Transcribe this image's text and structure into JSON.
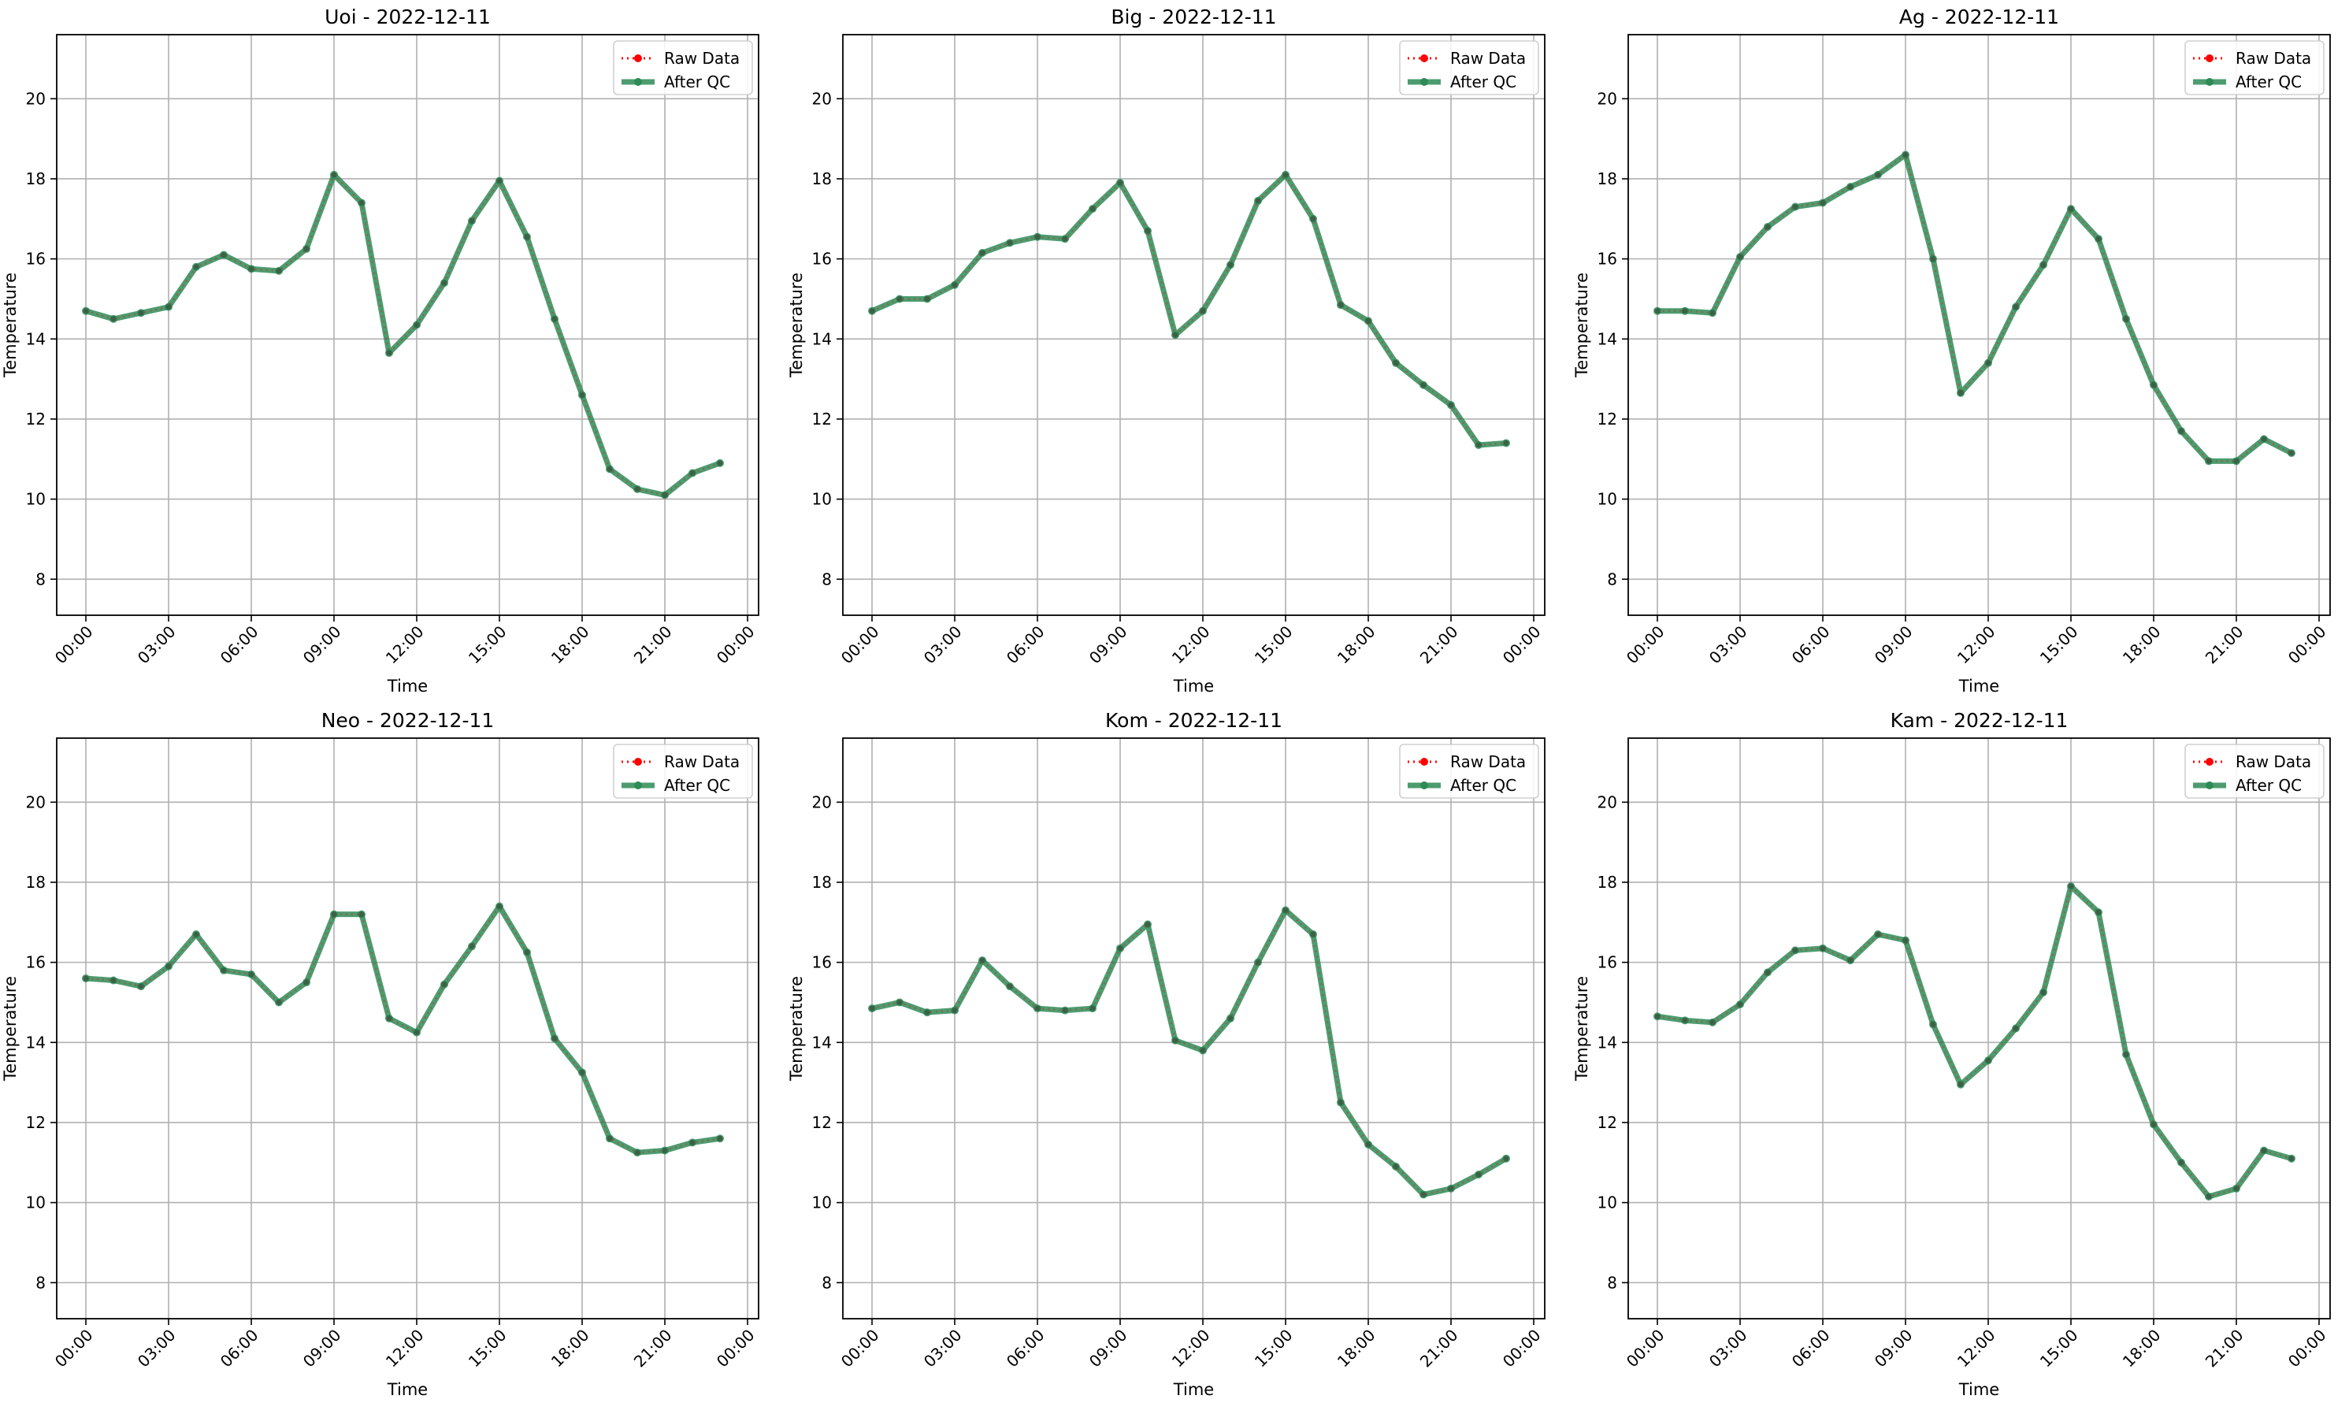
{
  "chart_data": [
    {
      "type": "line",
      "title": "Uoi - 2022-12-11",
      "xlabel": "Time",
      "ylabel": "Temperature",
      "x_ticks": [
        "00:00",
        "03:00",
        "06:00",
        "09:00",
        "12:00",
        "15:00",
        "18:00",
        "21:00",
        "00:00"
      ],
      "x_hours": [
        0,
        1,
        2,
        3,
        4,
        5,
        6,
        7,
        8,
        9,
        10,
        11,
        12,
        13,
        14,
        15,
        16,
        17,
        18,
        19,
        20,
        21,
        22,
        23
      ],
      "ylim": [
        7.1,
        21.6
      ],
      "y_ticks": [
        8,
        10,
        12,
        14,
        16,
        18,
        20
      ],
      "grid": true,
      "legend": "top-right",
      "series": [
        {
          "name": "Raw Data",
          "color": "#ff0000",
          "style": "dotted",
          "values": [
            14.7,
            14.5,
            14.65,
            14.8,
            15.8,
            16.1,
            15.75,
            15.7,
            16.25,
            18.1,
            17.4,
            13.65,
            14.35,
            15.4,
            16.95,
            17.95,
            16.55,
            14.5,
            12.6,
            10.75,
            10.25,
            10.1,
            10.65,
            10.9
          ]
        },
        {
          "name": "After QC",
          "color": "#2e8b57",
          "style": "solid",
          "values": [
            14.7,
            14.5,
            14.65,
            14.8,
            15.8,
            16.1,
            15.75,
            15.7,
            16.25,
            18.1,
            17.4,
            13.65,
            14.35,
            15.4,
            16.95,
            17.95,
            16.55,
            14.5,
            12.6,
            10.75,
            10.25,
            10.1,
            10.65,
            10.9
          ]
        }
      ]
    },
    {
      "type": "line",
      "title": "Big - 2022-12-11",
      "xlabel": "Time",
      "ylabel": "Temperature",
      "x_ticks": [
        "00:00",
        "03:00",
        "06:00",
        "09:00",
        "12:00",
        "15:00",
        "18:00",
        "21:00",
        "00:00"
      ],
      "x_hours": [
        0,
        1,
        2,
        3,
        4,
        5,
        6,
        7,
        8,
        9,
        10,
        11,
        12,
        13,
        14,
        15,
        16,
        17,
        18,
        19,
        20,
        21,
        22,
        23
      ],
      "ylim": [
        7.1,
        21.6
      ],
      "y_ticks": [
        8,
        10,
        12,
        14,
        16,
        18,
        20
      ],
      "grid": true,
      "legend": "top-right",
      "series": [
        {
          "name": "Raw Data",
          "color": "#ff0000",
          "style": "dotted",
          "values": [
            14.7,
            15.0,
            15.0,
            15.35,
            16.15,
            16.4,
            16.55,
            16.5,
            17.25,
            17.9,
            16.7,
            14.1,
            14.7,
            15.85,
            17.45,
            18.1,
            17.0,
            14.85,
            14.45,
            13.4,
            12.85,
            12.35,
            11.35,
            11.4
          ]
        },
        {
          "name": "After QC",
          "color": "#2e8b57",
          "style": "solid",
          "values": [
            14.7,
            15.0,
            15.0,
            15.35,
            16.15,
            16.4,
            16.55,
            16.5,
            17.25,
            17.9,
            16.7,
            14.1,
            14.7,
            15.85,
            17.45,
            18.1,
            17.0,
            14.85,
            14.45,
            13.4,
            12.85,
            12.35,
            11.35,
            11.4
          ]
        }
      ]
    },
    {
      "type": "line",
      "title": "Ag - 2022-12-11",
      "xlabel": "Time",
      "ylabel": "Temperature",
      "x_ticks": [
        "00:00",
        "03:00",
        "06:00",
        "09:00",
        "12:00",
        "15:00",
        "18:00",
        "21:00",
        "00:00"
      ],
      "x_hours": [
        0,
        1,
        2,
        3,
        4,
        5,
        6,
        7,
        8,
        9,
        10,
        11,
        12,
        13,
        14,
        15,
        16,
        17,
        18,
        19,
        20,
        21,
        22,
        23
      ],
      "ylim": [
        7.1,
        21.6
      ],
      "y_ticks": [
        8,
        10,
        12,
        14,
        16,
        18,
        20
      ],
      "grid": true,
      "legend": "top-right",
      "series": [
        {
          "name": "Raw Data",
          "color": "#ff0000",
          "style": "dotted",
          "values": [
            14.7,
            14.7,
            14.65,
            16.05,
            16.8,
            17.3,
            17.4,
            17.8,
            18.1,
            18.6,
            16.0,
            12.65,
            13.4,
            14.8,
            15.85,
            17.25,
            16.5,
            14.5,
            12.85,
            11.7,
            10.95,
            10.95,
            11.5,
            11.15
          ]
        },
        {
          "name": "After QC",
          "color": "#2e8b57",
          "style": "solid",
          "values": [
            14.7,
            14.7,
            14.65,
            16.05,
            16.8,
            17.3,
            17.4,
            17.8,
            18.1,
            18.6,
            16.0,
            12.65,
            13.4,
            14.8,
            15.85,
            17.25,
            16.5,
            14.5,
            12.85,
            11.7,
            10.95,
            10.95,
            11.5,
            11.15
          ]
        }
      ]
    },
    {
      "type": "line",
      "title": "Neo - 2022-12-11",
      "xlabel": "Time",
      "ylabel": "Temperature",
      "x_ticks": [
        "00:00",
        "03:00",
        "06:00",
        "09:00",
        "12:00",
        "15:00",
        "18:00",
        "21:00",
        "00:00"
      ],
      "x_hours": [
        0,
        1,
        2,
        3,
        4,
        5,
        6,
        7,
        8,
        9,
        10,
        11,
        12,
        13,
        14,
        15,
        16,
        17,
        18,
        19,
        20,
        21,
        22,
        23
      ],
      "ylim": [
        7.1,
        21.6
      ],
      "y_ticks": [
        8,
        10,
        12,
        14,
        16,
        18,
        20
      ],
      "grid": true,
      "legend": "top-right",
      "series": [
        {
          "name": "Raw Data",
          "color": "#ff0000",
          "style": "dotted",
          "values": [
            15.6,
            15.55,
            15.4,
            15.9,
            16.7,
            15.8,
            15.7,
            15.0,
            15.5,
            17.2,
            17.2,
            14.6,
            14.25,
            15.45,
            16.4,
            17.4,
            16.25,
            14.1,
            13.25,
            11.6,
            11.25,
            11.3,
            11.5,
            11.6
          ]
        },
        {
          "name": "After QC",
          "color": "#2e8b57",
          "style": "solid",
          "values": [
            15.6,
            15.55,
            15.4,
            15.9,
            16.7,
            15.8,
            15.7,
            15.0,
            15.5,
            17.2,
            17.2,
            14.6,
            14.25,
            15.45,
            16.4,
            17.4,
            16.25,
            14.1,
            13.25,
            11.6,
            11.25,
            11.3,
            11.5,
            11.6
          ]
        }
      ]
    },
    {
      "type": "line",
      "title": "Kom - 2022-12-11",
      "xlabel": "Time",
      "ylabel": "Temperature",
      "x_ticks": [
        "00:00",
        "03:00",
        "06:00",
        "09:00",
        "12:00",
        "15:00",
        "18:00",
        "21:00",
        "00:00"
      ],
      "x_hours": [
        0,
        1,
        2,
        3,
        4,
        5,
        6,
        7,
        8,
        9,
        10,
        11,
        12,
        13,
        14,
        15,
        16,
        17,
        18,
        19,
        20,
        21,
        22,
        23
      ],
      "ylim": [
        7.1,
        21.6
      ],
      "y_ticks": [
        8,
        10,
        12,
        14,
        16,
        18,
        20
      ],
      "grid": true,
      "legend": "top-right",
      "series": [
        {
          "name": "Raw Data",
          "color": "#ff0000",
          "style": "dotted",
          "values": [
            14.85,
            15.0,
            14.75,
            14.8,
            16.05,
            15.4,
            14.85,
            14.8,
            14.85,
            16.35,
            16.95,
            14.05,
            13.8,
            14.6,
            16.0,
            17.3,
            16.7,
            12.5,
            11.45,
            10.9,
            10.2,
            10.35,
            10.7,
            11.1
          ]
        },
        {
          "name": "After QC",
          "color": "#2e8b57",
          "style": "solid",
          "values": [
            14.85,
            15.0,
            14.75,
            14.8,
            16.05,
            15.4,
            14.85,
            14.8,
            14.85,
            16.35,
            16.95,
            14.05,
            13.8,
            14.6,
            16.0,
            17.3,
            16.7,
            12.5,
            11.45,
            10.9,
            10.2,
            10.35,
            10.7,
            11.1
          ]
        }
      ]
    },
    {
      "type": "line",
      "title": "Kam - 2022-12-11",
      "xlabel": "Time",
      "ylabel": "Temperature",
      "x_ticks": [
        "00:00",
        "03:00",
        "06:00",
        "09:00",
        "12:00",
        "15:00",
        "18:00",
        "21:00",
        "00:00"
      ],
      "x_hours": [
        0,
        1,
        2,
        3,
        4,
        5,
        6,
        7,
        8,
        9,
        10,
        11,
        12,
        13,
        14,
        15,
        16,
        17,
        18,
        19,
        20,
        21,
        22,
        23
      ],
      "ylim": [
        7.1,
        21.6
      ],
      "y_ticks": [
        8,
        10,
        12,
        14,
        16,
        18,
        20
      ],
      "grid": true,
      "legend": "top-right",
      "series": [
        {
          "name": "Raw Data",
          "color": "#ff0000",
          "style": "dotted",
          "values": [
            14.65,
            14.55,
            14.5,
            14.95,
            15.75,
            16.3,
            16.35,
            16.05,
            16.7,
            16.55,
            14.45,
            12.95,
            13.55,
            14.35,
            15.25,
            17.9,
            17.25,
            13.7,
            11.95,
            11.0,
            10.15,
            10.35,
            11.3,
            11.1
          ]
        },
        {
          "name": "After QC",
          "color": "#2e8b57",
          "style": "solid",
          "values": [
            14.65,
            14.55,
            14.5,
            14.95,
            15.75,
            16.3,
            16.35,
            16.05,
            16.7,
            16.55,
            14.45,
            12.95,
            13.55,
            14.35,
            15.25,
            17.9,
            17.25,
            13.7,
            11.95,
            11.0,
            10.15,
            10.35,
            11.3,
            11.1
          ]
        }
      ]
    }
  ]
}
